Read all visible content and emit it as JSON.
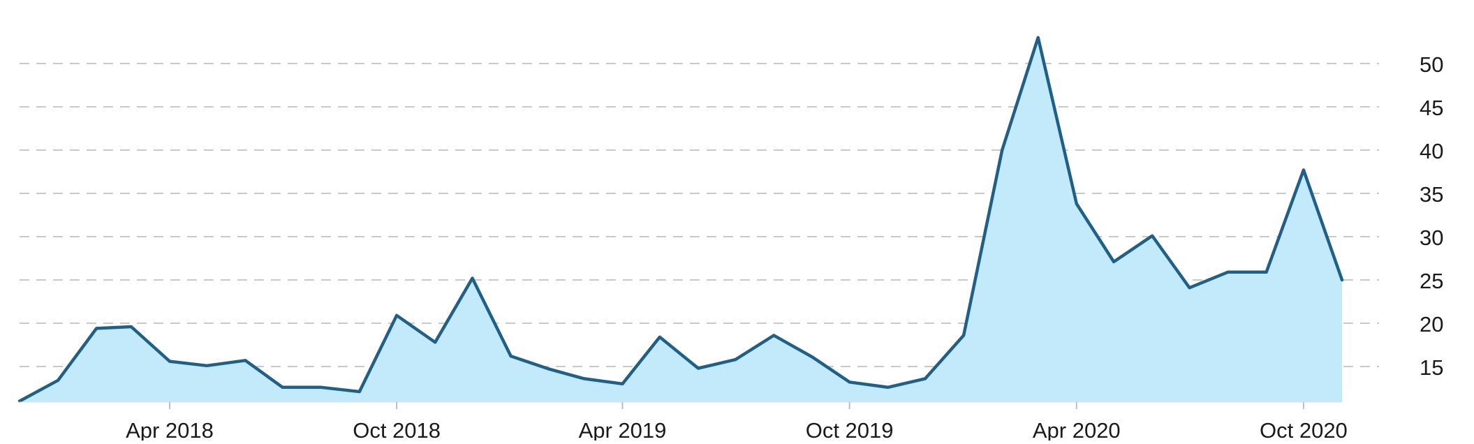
{
  "chart_data": {
    "type": "area",
    "title": "",
    "xlabel": "",
    "ylabel": "",
    "x_tick_labels": [
      "Apr 2018",
      "Oct 2018",
      "Apr 2019",
      "Oct 2019",
      "Apr 2020",
      "Oct 2020"
    ],
    "y_tick_labels": [
      "15",
      "20",
      "25",
      "30",
      "35",
      "40",
      "45",
      "50"
    ],
    "y_axis_side": "right",
    "grid": "horizontal dashed",
    "ylim": [
      11,
      53.5
    ],
    "x": [
      "2017-12-01",
      "2018-01-01",
      "2018-02-01",
      "2018-03-01",
      "2018-04-01",
      "2018-05-01",
      "2018-06-01",
      "2018-07-01",
      "2018-08-01",
      "2018-09-01",
      "2018-10-01",
      "2018-11-01",
      "2018-12-01",
      "2019-01-01",
      "2019-02-01",
      "2019-03-01",
      "2019-04-01",
      "2019-05-01",
      "2019-06-01",
      "2019-07-01",
      "2019-08-01",
      "2019-09-01",
      "2019-10-01",
      "2019-11-01",
      "2019-12-01",
      "2020-01-01",
      "2020-02-01",
      "2020-03-01",
      "2020-04-01",
      "2020-05-01",
      "2020-06-01",
      "2020-07-01",
      "2020-08-01",
      "2020-09-01",
      "2020-10-01",
      "2020-11-01"
    ],
    "values": [
      11.0,
      13.4,
      19.4,
      19.6,
      15.6,
      15.1,
      15.7,
      12.6,
      12.6,
      12.1,
      20.9,
      17.8,
      25.2,
      16.2,
      14.7,
      13.6,
      13.0,
      18.4,
      14.8,
      15.8,
      18.6,
      16.1,
      13.2,
      12.6,
      13.6,
      18.6,
      40.0,
      53.0,
      33.8,
      27.1,
      30.1,
      24.1,
      25.9,
      25.9,
      37.7,
      25.0
    ],
    "colors": {
      "line": "#1f6089",
      "fill": "#c2eafb",
      "grid": "#c9c9c9",
      "text": "#1a1a1a"
    }
  }
}
